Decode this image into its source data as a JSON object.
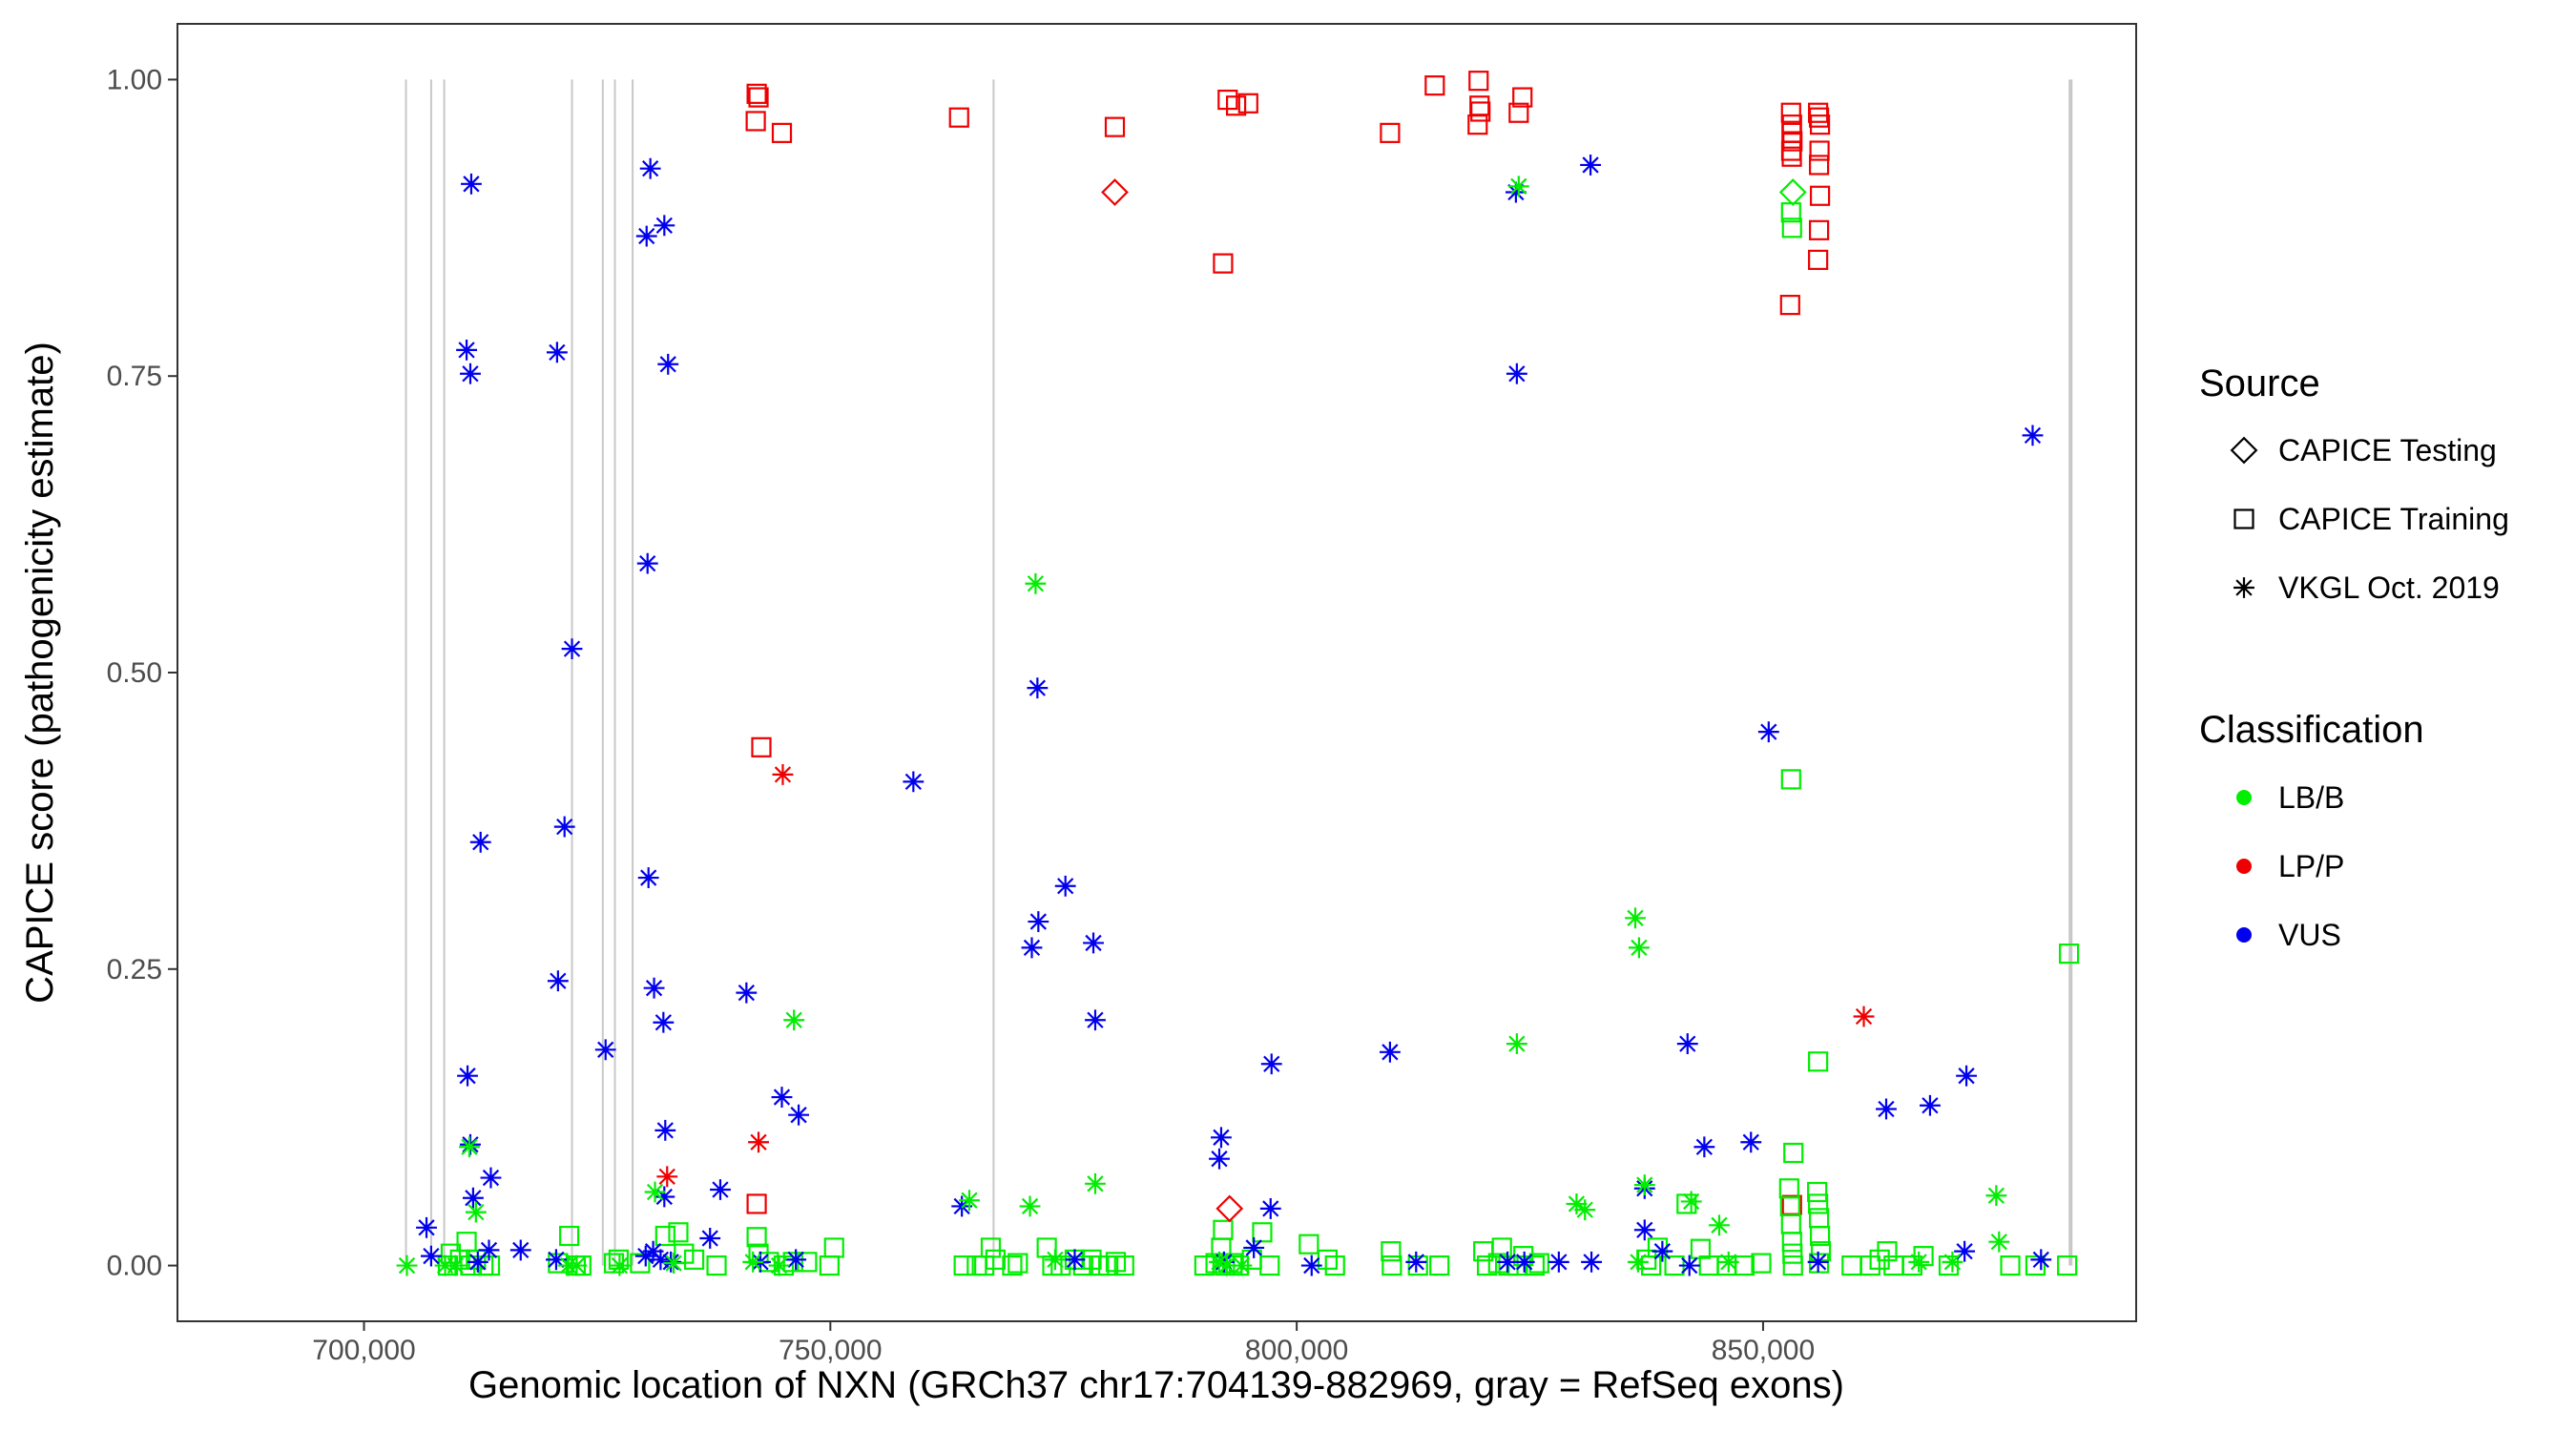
{
  "chart_data": {
    "type": "scatter",
    "title": "",
    "xlabel": "Genomic location of NXN (GRCh37 chr17:704139-882969, gray = RefSeq exons)",
    "ylabel": "CAPICE score (pathogenicity estimate)",
    "xlim": [
      680000,
      890000
    ],
    "ylim": [
      -0.047,
      1.047
    ],
    "x_ticks": [
      700000,
      750000,
      800000,
      850000
    ],
    "x_tick_labels": [
      "700,000",
      "750,000",
      "800,000",
      "850,000"
    ],
    "y_ticks": [
      0,
      0.25,
      0.5,
      0.75,
      1.0
    ],
    "y_tick_labels": [
      "0.00",
      "0.25",
      "0.50",
      "0.75",
      "1.00"
    ],
    "grid": false,
    "exon_lines": [
      704500,
      707200,
      708600,
      722300,
      725600,
      726900,
      728800,
      767500,
      882969
    ],
    "exon_line_color": "#c8c8c8",
    "shape_legend": {
      "title": "Source",
      "entries": [
        {
          "shape": "diamond",
          "label": "CAPICE Testing"
        },
        {
          "shape": "square",
          "label": "CAPICE Training"
        },
        {
          "shape": "asterisk",
          "label": "VKGL Oct. 2019"
        }
      ]
    },
    "color_legend": {
      "title": "Classification",
      "entries": [
        {
          "label": "LB/B",
          "color": "#00ee00"
        },
        {
          "label": "LP/P",
          "color": "#ee0000"
        },
        {
          "label": "VUS",
          "color": "#0000ee"
        }
      ]
    },
    "legend_position": "right",
    "series": [
      {
        "source": "CAPICE Testing",
        "classification": "LP/P",
        "shape": "diamond",
        "points": [
          [
            780500,
            0.905
          ],
          [
            792800,
            0.048
          ]
        ]
      },
      {
        "source": "CAPICE Testing",
        "classification": "LB/B",
        "shape": "diamond",
        "points": [
          [
            853200,
            0.905
          ]
        ]
      },
      {
        "source": "CAPICE Training",
        "classification": "LP/P",
        "shape": "square",
        "points": [
          [
            742100,
            0.988
          ],
          [
            742300,
            0.985
          ],
          [
            742000,
            0.965
          ],
          [
            744800,
            0.955
          ],
          [
            763800,
            0.968
          ],
          [
            780500,
            0.96
          ],
          [
            792600,
            0.983
          ],
          [
            793500,
            0.978
          ],
          [
            794800,
            0.98
          ],
          [
            792100,
            0.845
          ],
          [
            810000,
            0.955
          ],
          [
            814800,
            0.995
          ],
          [
            819500,
            0.999
          ],
          [
            819600,
            0.978
          ],
          [
            819700,
            0.973
          ],
          [
            819400,
            0.962
          ],
          [
            824200,
            0.985
          ],
          [
            823800,
            0.972
          ],
          [
            853000,
            0.972
          ],
          [
            853100,
            0.962
          ],
          [
            853050,
            0.955
          ],
          [
            853150,
            0.948
          ],
          [
            853020,
            0.94
          ],
          [
            853080,
            0.935
          ],
          [
            855900,
            0.972
          ],
          [
            856000,
            0.968
          ],
          [
            856100,
            0.962
          ],
          [
            856050,
            0.94
          ],
          [
            856000,
            0.928
          ],
          [
            856100,
            0.902
          ],
          [
            856000,
            0.873
          ],
          [
            855900,
            0.848
          ],
          [
            852900,
            0.81
          ],
          [
            742600,
            0.437
          ],
          [
            742100,
            0.052
          ],
          [
            853100,
            0.051
          ]
        ]
      },
      {
        "source": "CAPICE Training",
        "classification": "LB/B",
        "shape": "square",
        "points": [
          [
            709000,
            0.0
          ],
          [
            709300,
            0.01
          ],
          [
            710300,
            0.005
          ],
          [
            711000,
            0.02
          ],
          [
            711400,
            0.0
          ],
          [
            712000,
            0.005
          ],
          [
            712800,
            0.0
          ],
          [
            713500,
            0.0
          ],
          [
            720800,
            0.002
          ],
          [
            722000,
            0.025
          ],
          [
            722700,
            0.0
          ],
          [
            723300,
            0.0
          ],
          [
            726800,
            0.002
          ],
          [
            727300,
            0.005
          ],
          [
            729600,
            0.002
          ],
          [
            732300,
            0.025
          ],
          [
            733700,
            0.028
          ],
          [
            734300,
            0.01
          ],
          [
            735400,
            0.005
          ],
          [
            737800,
            0.0
          ],
          [
            742100,
            0.024
          ],
          [
            742300,
            0.01
          ],
          [
            743400,
            0.003
          ],
          [
            745000,
            0.0
          ],
          [
            746000,
            0.003
          ],
          [
            747500,
            0.003
          ],
          [
            749900,
            0.0
          ],
          [
            750400,
            0.015
          ],
          [
            764300,
            0.0
          ],
          [
            765700,
            0.0
          ],
          [
            766500,
            0.0
          ],
          [
            767200,
            0.015
          ],
          [
            767700,
            0.005
          ],
          [
            769500,
            0.0
          ],
          [
            770100,
            0.002
          ],
          [
            773200,
            0.015
          ],
          [
            773800,
            0.0
          ],
          [
            774700,
            0.0
          ],
          [
            776200,
            0.005
          ],
          [
            777100,
            0.0
          ],
          [
            778000,
            0.005
          ],
          [
            778800,
            0.0
          ],
          [
            779800,
            0.0
          ],
          [
            780600,
            0.003
          ],
          [
            781500,
            0.0
          ],
          [
            790100,
            0.0
          ],
          [
            791300,
            0.002
          ],
          [
            791900,
            0.015
          ],
          [
            792100,
            0.03
          ],
          [
            792300,
            0.0
          ],
          [
            793100,
            0.002
          ],
          [
            793800,
            0.0
          ],
          [
            795200,
            0.005
          ],
          [
            796300,
            0.028
          ],
          [
            797100,
            0.0
          ],
          [
            801300,
            0.018
          ],
          [
            803300,
            0.005
          ],
          [
            804100,
            0.0
          ],
          [
            810100,
            0.012
          ],
          [
            810200,
            0.0
          ],
          [
            813000,
            0.0
          ],
          [
            815300,
            0.0
          ],
          [
            820000,
            0.012
          ],
          [
            820400,
            0.0
          ],
          [
            821600,
            0.002
          ],
          [
            822000,
            0.015
          ],
          [
            822700,
            0.0
          ],
          [
            823700,
            0.0
          ],
          [
            824300,
            0.008
          ],
          [
            825500,
            0.0
          ],
          [
            826000,
            0.002
          ],
          [
            837500,
            0.005
          ],
          [
            838000,
            0.0
          ],
          [
            838700,
            0.015
          ],
          [
            840500,
            0.0
          ],
          [
            841800,
            0.052
          ],
          [
            843300,
            0.014
          ],
          [
            844200,
            0.0
          ],
          [
            846100,
            0.0
          ],
          [
            848000,
            0.0
          ],
          [
            849800,
            0.002
          ],
          [
            852800,
            0.065
          ],
          [
            852900,
            0.05
          ],
          [
            853000,
            0.035
          ],
          [
            853100,
            0.02
          ],
          [
            853150,
            0.01
          ],
          [
            853200,
            0.0
          ],
          [
            853250,
            0.095
          ],
          [
            855800,
            0.062
          ],
          [
            855900,
            0.052
          ],
          [
            856000,
            0.04
          ],
          [
            856100,
            0.025
          ],
          [
            856200,
            0.012
          ],
          [
            856000,
            0.002
          ],
          [
            859500,
            0.0
          ],
          [
            861500,
            0.0
          ],
          [
            862500,
            0.005
          ],
          [
            863300,
            0.012
          ],
          [
            864000,
            0.0
          ],
          [
            866000,
            0.0
          ],
          [
            867200,
            0.008
          ],
          [
            869900,
            0.0
          ],
          [
            876500,
            0.0
          ],
          [
            879200,
            0.0
          ],
          [
            882600,
            0.0
          ],
          [
            855900,
            0.172
          ],
          [
            853000,
            0.41
          ],
          [
            882800,
            0.263
          ],
          [
            853100,
            0.875
          ],
          [
            853000,
            0.888
          ]
        ]
      },
      {
        "source": "VKGL Oct. 2019",
        "classification": "VUS",
        "shape": "asterisk",
        "points": [
          [
            711500,
            0.912
          ],
          [
            711000,
            0.772
          ],
          [
            711400,
            0.752
          ],
          [
            712500,
            0.357
          ],
          [
            711100,
            0.16
          ],
          [
            711400,
            0.102
          ],
          [
            711700,
            0.057
          ],
          [
            713600,
            0.074
          ],
          [
            713400,
            0.013
          ],
          [
            716800,
            0.013
          ],
          [
            706700,
            0.032
          ],
          [
            707200,
            0.008
          ],
          [
            712200,
            0.003
          ],
          [
            720700,
            0.77
          ],
          [
            722300,
            0.52
          ],
          [
            721500,
            0.37
          ],
          [
            720800,
            0.24
          ],
          [
            720600,
            0.005
          ],
          [
            725900,
            0.182
          ],
          [
            730700,
            0.925
          ],
          [
            730300,
            0.868
          ],
          [
            732200,
            0.877
          ],
          [
            732600,
            0.76
          ],
          [
            730400,
            0.592
          ],
          [
            730500,
            0.327
          ],
          [
            731100,
            0.234
          ],
          [
            732100,
            0.205
          ],
          [
            732300,
            0.114
          ],
          [
            732200,
            0.058
          ],
          [
            731000,
            0.012
          ],
          [
            731800,
            0.005
          ],
          [
            730200,
            0.008
          ],
          [
            741000,
            0.23
          ],
          [
            738200,
            0.064
          ],
          [
            737100,
            0.023
          ],
          [
            744800,
            0.142
          ],
          [
            746600,
            0.127
          ],
          [
            742500,
            0.003
          ],
          [
            746300,
            0.005
          ],
          [
            758900,
            0.408
          ],
          [
            772200,
            0.487
          ],
          [
            772300,
            0.29
          ],
          [
            771600,
            0.268
          ],
          [
            775200,
            0.32
          ],
          [
            778200,
            0.272
          ],
          [
            778400,
            0.207
          ],
          [
            776200,
            0.005
          ],
          [
            797300,
            0.17
          ],
          [
            791900,
            0.108
          ],
          [
            791700,
            0.09
          ],
          [
            792200,
            0.003
          ],
          [
            797200,
            0.048
          ],
          [
            795400,
            0.015
          ],
          [
            810000,
            0.18
          ],
          [
            801600,
            0.0
          ],
          [
            812800,
            0.003
          ],
          [
            823600,
            0.752
          ],
          [
            823500,
            0.905
          ],
          [
            831500,
            0.928
          ],
          [
            850600,
            0.45
          ],
          [
            878900,
            0.7
          ],
          [
            841900,
            0.187
          ],
          [
            843700,
            0.1
          ],
          [
            848700,
            0.104
          ],
          [
            863200,
            0.132
          ],
          [
            867900,
            0.135
          ],
          [
            871800,
            0.16
          ],
          [
            837300,
            0.065
          ],
          [
            837300,
            0.03
          ],
          [
            839200,
            0.012
          ],
          [
            842100,
            0.0
          ],
          [
            855900,
            0.003
          ],
          [
            871600,
            0.012
          ],
          [
            879800,
            0.005
          ],
          [
            828100,
            0.003
          ],
          [
            831600,
            0.003
          ],
          [
            822600,
            0.003
          ],
          [
            824400,
            0.003
          ],
          [
            764100,
            0.05
          ],
          [
            732900,
            0.003
          ]
        ]
      },
      {
        "source": "VKGL Oct. 2019",
        "classification": "LP/P",
        "shape": "asterisk",
        "points": [
          [
            744900,
            0.414
          ],
          [
            742300,
            0.104
          ],
          [
            732500,
            0.075
          ],
          [
            860800,
            0.21
          ]
        ]
      },
      {
        "source": "VKGL Oct. 2019",
        "classification": "LB/B",
        "shape": "asterisk",
        "points": [
          [
            772000,
            0.575
          ],
          [
            746100,
            0.207
          ],
          [
            711300,
            0.1
          ],
          [
            712000,
            0.045
          ],
          [
            704600,
            0.0
          ],
          [
            708700,
            0.0
          ],
          [
            709800,
            0.0
          ],
          [
            721900,
            0.0
          ],
          [
            722800,
            0.0
          ],
          [
            727400,
            0.0
          ],
          [
            731200,
            0.062
          ],
          [
            733200,
            0.002
          ],
          [
            741700,
            0.003
          ],
          [
            744500,
            0.0
          ],
          [
            764900,
            0.055
          ],
          [
            771400,
            0.05
          ],
          [
            778400,
            0.069
          ],
          [
            774100,
            0.005
          ],
          [
            791700,
            0.003
          ],
          [
            792500,
            0.0
          ],
          [
            794100,
            0.0
          ],
          [
            823600,
            0.187
          ],
          [
            823800,
            0.91
          ],
          [
            836300,
            0.293
          ],
          [
            836700,
            0.268
          ],
          [
            837300,
            0.068
          ],
          [
            842300,
            0.054
          ],
          [
            830000,
            0.052
          ],
          [
            830900,
            0.047
          ],
          [
            845300,
            0.034
          ],
          [
            875000,
            0.059
          ],
          [
            875300,
            0.02
          ],
          [
            836600,
            0.003
          ],
          [
            846300,
            0.003
          ],
          [
            866700,
            0.003
          ],
          [
            870300,
            0.003
          ]
        ]
      }
    ]
  }
}
